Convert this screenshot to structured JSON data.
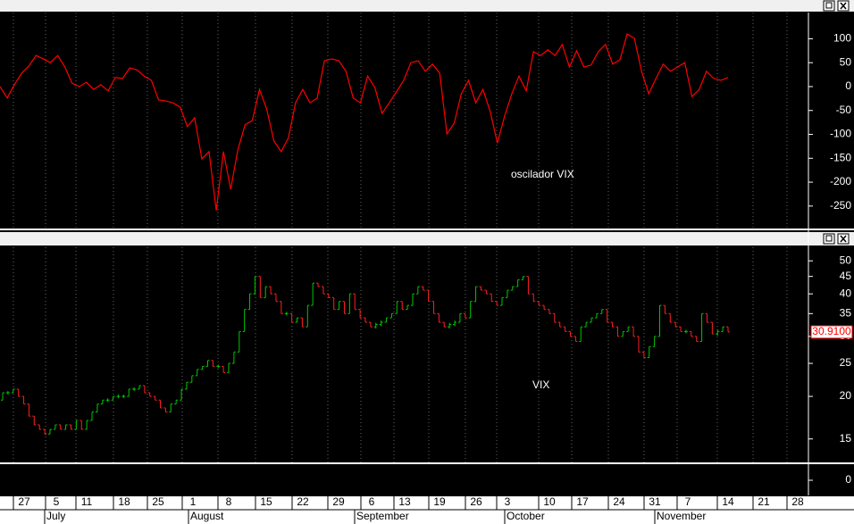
{
  "chart_data": [
    {
      "type": "line",
      "annotation": "oscilador VIX",
      "grid": true,
      "ylim": [
        -297,
        155
      ],
      "yticks": [
        100,
        50,
        0,
        -50,
        -100,
        -150,
        -200,
        -250
      ],
      "series": [
        {
          "color": "#ff0000",
          "values": [
            0,
            -24,
            4,
            28,
            43,
            65,
            58,
            50,
            65,
            41,
            7,
            0,
            9,
            -6,
            4,
            -9,
            19,
            17,
            39,
            35,
            22,
            13,
            -28,
            -30,
            -34,
            -43,
            -84,
            -65,
            -151,
            -136,
            -259,
            -136,
            -215,
            -132,
            -80,
            -71,
            -6,
            -47,
            -114,
            -136,
            -108,
            -34,
            -6,
            -34,
            -24,
            54,
            58,
            54,
            32,
            -24,
            -34,
            22,
            -2,
            -56,
            -34,
            -11,
            13,
            50,
            54,
            32,
            47,
            28,
            -99,
            -77,
            -15,
            13,
            -34,
            -6,
            -52,
            -118,
            -62,
            -15,
            22,
            -9,
            73,
            65,
            77,
            65,
            88,
            41,
            75,
            41,
            45,
            73,
            88,
            47,
            56,
            110,
            101,
            32,
            -15,
            17,
            47,
            32,
            41,
            50,
            -21,
            -6,
            32,
            17,
            13,
            19
          ]
        }
      ]
    },
    {
      "type": "ohlc",
      "annotation": "VIX",
      "log_scale": true,
      "grid": true,
      "ylim": [
        12.8,
        54.8
      ],
      "yticks": [
        50,
        45,
        40,
        35,
        30,
        25,
        20,
        15
      ],
      "up_color": "#00c800",
      "down_color": "#ff2020",
      "last_value": {
        "value": 30.91,
        "label": "30.9100"
      },
      "open": [
        19.5,
        20.5,
        20.5,
        21,
        20,
        19,
        17.5,
        16.5,
        16,
        15.5,
        16,
        16.5,
        16,
        16.5,
        16,
        17,
        16,
        17,
        18,
        19,
        19.5,
        19.5,
        20,
        20,
        20,
        21,
        21,
        21.5,
        20.5,
        20,
        19.5,
        18.5,
        18,
        19,
        19.5,
        21,
        22,
        23,
        24,
        24.5,
        25.5,
        24.5,
        24.5,
        23.5,
        25,
        27,
        31,
        36,
        40,
        45,
        39,
        42,
        40,
        38,
        35,
        35,
        33,
        34,
        32,
        37,
        43,
        42,
        40,
        39,
        36,
        38,
        35,
        40,
        36,
        34,
        33,
        32,
        32.5,
        33,
        34,
        35,
        38,
        36,
        37,
        40,
        42,
        41,
        38,
        35,
        33,
        32,
        32.5,
        33,
        35,
        34,
        38,
        42,
        41,
        40,
        38,
        37,
        39,
        41,
        42,
        44,
        45,
        40,
        38,
        37,
        36,
        35,
        33,
        32,
        31,
        30,
        29,
        32,
        33,
        34,
        35,
        36,
        33,
        32,
        30,
        31,
        32,
        30,
        27,
        26,
        28,
        30,
        37,
        35,
        33,
        32,
        31,
        31,
        30,
        29,
        35,
        33,
        30.5,
        31,
        32
      ],
      "close": [
        20.5,
        20.5,
        21,
        20,
        19,
        17.5,
        16.5,
        16,
        15.5,
        16,
        16.5,
        16,
        16.5,
        16,
        17,
        16,
        17,
        18,
        19,
        19.5,
        19.5,
        20,
        20,
        20,
        21,
        21,
        21.5,
        20.5,
        20,
        19.5,
        18.5,
        18,
        19,
        19.5,
        21,
        22,
        23,
        24,
        24.5,
        25.5,
        24.5,
        24.5,
        23.5,
        25,
        27,
        31,
        36,
        40,
        45,
        39,
        42,
        40,
        38,
        35,
        35,
        33,
        34,
        32,
        37,
        43,
        42,
        40,
        39,
        36,
        38,
        35,
        40,
        36,
        34,
        33,
        32,
        32.5,
        33,
        34,
        35,
        38,
        36,
        37,
        40,
        42,
        41,
        38,
        35,
        33,
        32,
        32.5,
        33,
        35,
        34,
        38,
        42,
        41,
        40,
        38,
        37,
        39,
        41,
        42,
        44,
        45,
        40,
        38,
        37,
        36,
        35,
        33,
        32,
        31,
        30,
        29,
        32,
        33,
        34,
        35,
        36,
        33,
        32,
        30,
        31,
        32,
        30,
        27,
        26,
        28,
        30,
        37,
        35,
        33,
        32,
        31,
        31,
        30,
        29,
        35,
        33,
        30.5,
        31,
        32,
        30.91
      ]
    },
    {
      "type": "empty",
      "ylim": [
        -1,
        1
      ],
      "yticks": [
        0
      ]
    }
  ],
  "x_axis": {
    "days": [
      "27",
      "5",
      "11",
      "18",
      "25",
      "1",
      "8",
      "15",
      "22",
      "29",
      "6",
      "13",
      "19",
      "26",
      "3",
      "10",
      "17",
      "24",
      "31",
      "7",
      "14",
      "21",
      "28"
    ],
    "months": [
      "July",
      "August",
      "September",
      "October",
      "November"
    ]
  }
}
